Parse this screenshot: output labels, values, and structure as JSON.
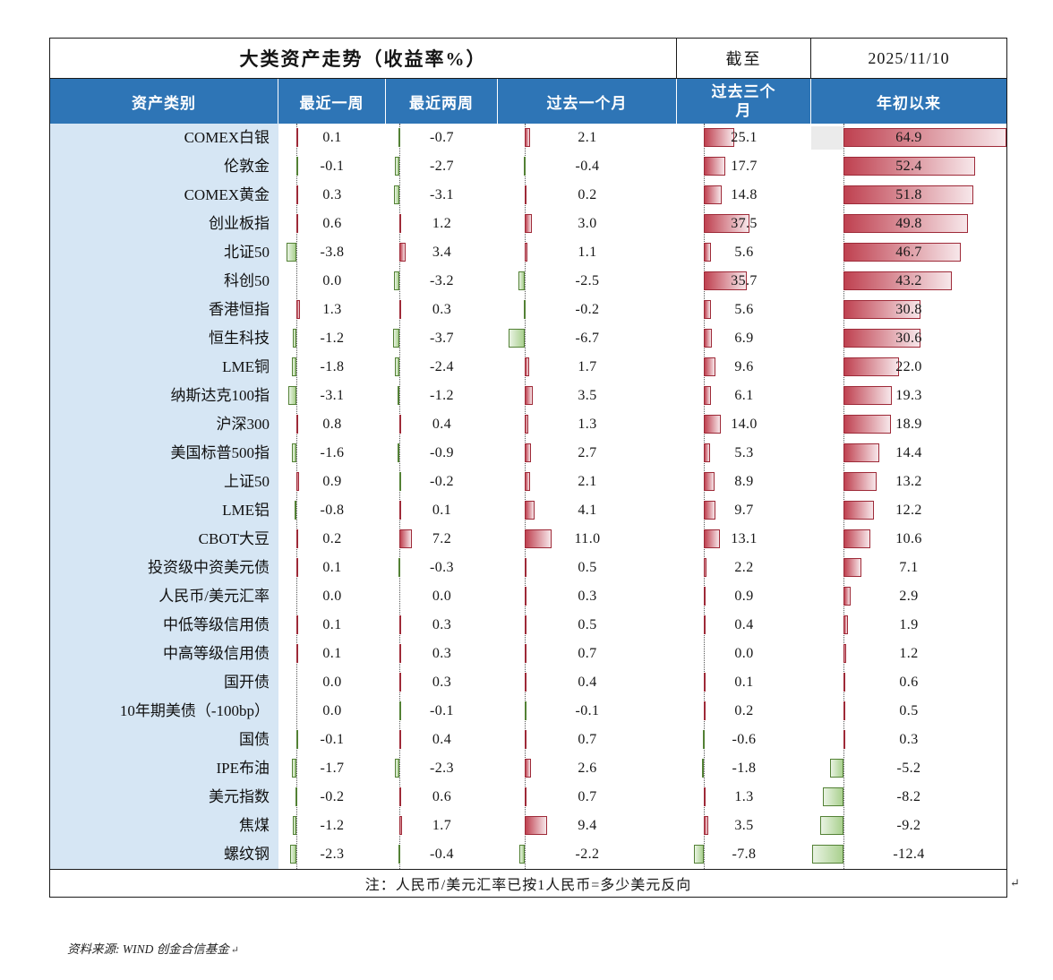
{
  "page": {
    "title": "大类资产走势（收益率%）",
    "as_of_label": "截至",
    "as_of_date": "2025/11/10",
    "note": "注：人民币/美元汇率已按1人民币=多少美元反向",
    "source": "资料来源: WIND 创金合信基金",
    "return_mark": "↵"
  },
  "table": {
    "column_headers": [
      "资产类别",
      "最近一周",
      "最近两周",
      "过去一个月",
      "过去三个月",
      "年初以来"
    ]
  },
  "colors": {
    "header_bg": "#2e75b6",
    "header_text": "#ffffff",
    "label_col_bg": "#d6e6f4",
    "positive_bar_border": "#9e2a38",
    "positive_bar_start": "#bf4150",
    "positive_bar_end": "#f7e7ea",
    "negative_bar_border": "#538135",
    "negative_bar_start": "#a9d08e",
    "negative_bar_end": "#e9f3e3",
    "axis_line": "#555555",
    "table_border": "#1a1a1a"
  },
  "chart_data": {
    "type": "table",
    "title": "大类资产走势（收益率%）",
    "as_of": "2025/11/10",
    "unit": "%",
    "value_columns": [
      "最近一周",
      "最近两周",
      "过去一个月",
      "过去三个月",
      "年初以来"
    ],
    "bar_visualization": "excel-style in-cell data bars: positive values red gradient bars extending right of dotted zero axis, negative values green bars extending left",
    "rows": [
      {
        "label": "COMEX白银",
        "values": [
          0.1,
          -0.7,
          2.1,
          25.1,
          64.9
        ]
      },
      {
        "label": "伦敦金",
        "values": [
          -0.1,
          -2.7,
          -0.4,
          17.7,
          52.4
        ]
      },
      {
        "label": "COMEX黄金",
        "values": [
          0.3,
          -3.1,
          0.2,
          14.8,
          51.8
        ]
      },
      {
        "label": "创业板指",
        "values": [
          0.6,
          1.2,
          3.0,
          37.5,
          49.8
        ]
      },
      {
        "label": "北证50",
        "values": [
          -3.8,
          3.4,
          1.1,
          5.6,
          46.7
        ]
      },
      {
        "label": "科创50",
        "values": [
          0.0,
          -3.2,
          -2.5,
          35.7,
          43.2
        ]
      },
      {
        "label": "香港恒指",
        "values": [
          1.3,
          0.3,
          -0.2,
          5.6,
          30.8
        ]
      },
      {
        "label": "恒生科技",
        "values": [
          -1.2,
          -3.7,
          -6.7,
          6.9,
          30.6
        ]
      },
      {
        "label": "LME铜",
        "values": [
          -1.8,
          -2.4,
          1.7,
          9.6,
          22.0
        ]
      },
      {
        "label": "纳斯达克100指",
        "values": [
          -3.1,
          -1.2,
          3.5,
          6.1,
          19.3
        ]
      },
      {
        "label": "沪深300",
        "values": [
          0.8,
          0.4,
          1.3,
          14.0,
          18.9
        ]
      },
      {
        "label": "美国标普500指",
        "values": [
          -1.6,
          -0.9,
          2.7,
          5.3,
          14.4
        ]
      },
      {
        "label": "上证50",
        "values": [
          0.9,
          -0.2,
          2.1,
          8.9,
          13.2
        ]
      },
      {
        "label": "LME铝",
        "values": [
          -0.8,
          0.1,
          4.1,
          9.7,
          12.2
        ]
      },
      {
        "label": "CBOT大豆",
        "values": [
          0.2,
          7.2,
          11.0,
          13.1,
          10.6
        ]
      },
      {
        "label": "投资级中资美元债",
        "values": [
          0.1,
          -0.3,
          0.5,
          2.2,
          7.1
        ]
      },
      {
        "label": "人民币/美元汇率",
        "values": [
          0.0,
          0.0,
          0.3,
          0.9,
          2.9
        ]
      },
      {
        "label": "中低等级信用债",
        "values": [
          0.1,
          0.3,
          0.5,
          0.4,
          1.9
        ]
      },
      {
        "label": "中高等级信用债",
        "values": [
          0.1,
          0.3,
          0.7,
          0.0,
          1.2
        ]
      },
      {
        "label": "国开债",
        "values": [
          0.0,
          0.3,
          0.4,
          0.1,
          0.6
        ]
      },
      {
        "label": "10年期美债（-100bp）",
        "values": [
          0.0,
          -0.1,
          -0.1,
          0.2,
          0.5
        ]
      },
      {
        "label": "国债",
        "values": [
          -0.1,
          0.4,
          0.7,
          -0.6,
          0.3
        ]
      },
      {
        "label": "IPE布油",
        "values": [
          -1.7,
          -2.3,
          2.6,
          -1.8,
          -5.2
        ]
      },
      {
        "label": "美元指数",
        "values": [
          -0.2,
          0.6,
          0.7,
          1.3,
          -8.2
        ]
      },
      {
        "label": "焦煤",
        "values": [
          -1.2,
          1.7,
          9.4,
          3.5,
          -9.2
        ]
      },
      {
        "label": "螺纹钢",
        "values": [
          -2.3,
          -0.4,
          -2.2,
          -7.8,
          -12.4
        ]
      }
    ]
  }
}
